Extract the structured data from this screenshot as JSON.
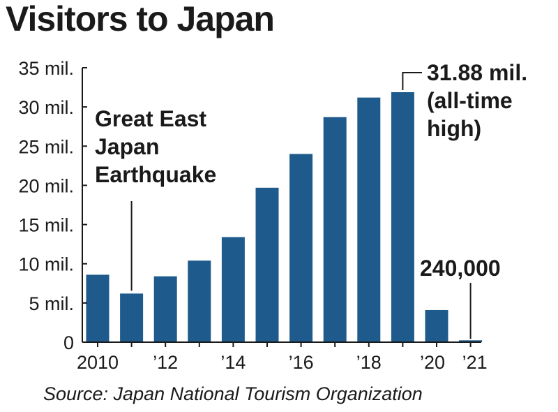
{
  "title": "Visitors to Japan",
  "source": "Source: Japan National Tourism Organization",
  "chart_data": {
    "type": "bar",
    "title": "Visitors to Japan",
    "xlabel": "",
    "ylabel": "",
    "categories": [
      "2010",
      "2011",
      "2012",
      "2013",
      "2014",
      "2015",
      "2016",
      "2017",
      "2018",
      "2019",
      "2020",
      "2021"
    ],
    "x_tick_labels": [
      "2010",
      "",
      "’12",
      "",
      "’14",
      "",
      "’16",
      "",
      "’18",
      "",
      "’20",
      "’21"
    ],
    "values": [
      8.6,
      6.2,
      8.4,
      10.4,
      13.4,
      19.7,
      24.0,
      28.7,
      31.2,
      31.88,
      4.1,
      0.24
    ],
    "unit": "mil.",
    "ylim": [
      0,
      35
    ],
    "y_ticks": [
      0,
      5,
      10,
      15,
      20,
      25,
      30,
      35
    ],
    "y_tick_labels": [
      "0",
      "5 mil.",
      "10 mil.",
      "15 mil.",
      "20 mil.",
      "25 mil.",
      "30 mil.",
      "35 mil."
    ],
    "bar_color": "#1e5b8c",
    "grid": false,
    "legend": "none",
    "annotations": [
      {
        "category": "2011",
        "lines": [
          "Great East",
          "Japan",
          "Earthquake"
        ]
      },
      {
        "category": "2019",
        "lines": [
          "31.88 mil.",
          "(all-time",
          "high)"
        ]
      },
      {
        "category": "2021",
        "lines": [
          "240,000"
        ]
      }
    ]
  }
}
